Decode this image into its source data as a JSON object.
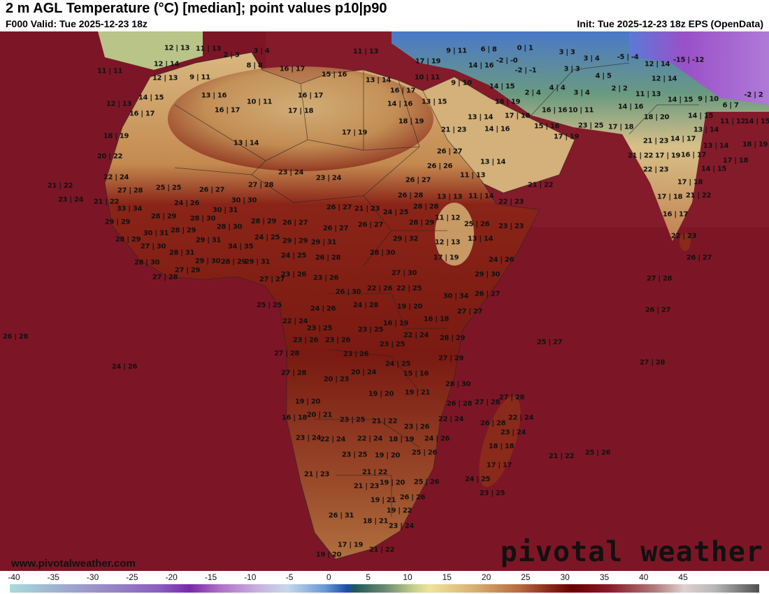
{
  "header": {
    "title": "2 m AGL Temperature (°C) [median]; point values p10|p90",
    "valid": "F000 Valid: Tue 2025-12-23 18z",
    "init": "Init: Tue 2025-12-23 18z EPS (OpenData)"
  },
  "footer": {
    "url": "www.pivotalweather.com",
    "logo": "pivotal weather"
  },
  "colorbar": {
    "ticks": [
      "-40",
      "-35",
      "-30",
      "-25",
      "-20",
      "-15",
      "-10",
      "-5",
      "0",
      "5",
      "10",
      "15",
      "20",
      "25",
      "30",
      "35",
      "40",
      "45"
    ],
    "units": "°C"
  },
  "colors": {
    "ocean": "#7c1626",
    "land_hot": "#8a2418",
    "sahara": "#c89a5e",
    "cold": "#3a6ac8",
    "very_cold": "#9a3ac8"
  },
  "point_values": [
    "12 | 13",
    "11 | 13",
    "2 | 3",
    "3 | 4",
    "11 | 13",
    "17 | 19",
    "9 | 11",
    "6 | 8",
    "0 | 1",
    "3 | 3",
    "3 | 4",
    "-5 | -4",
    "-15 | -12",
    "11 | 11",
    "12 | 14",
    "8 | 8",
    "16 | 17",
    "15 | 16",
    "14 | 16",
    "-2 | -0",
    "3 | 3",
    "4 | 5",
    "12 | 14",
    "12 | 14",
    "12 | 13",
    "9 | 11",
    "13 | 14",
    "10 | 11",
    "9 | 10",
    "-2 | -1",
    "14 | 15",
    "2 | 4",
    "4 | 4",
    "3 | 4",
    "2 | 2",
    "11 | 13",
    "14 | 15",
    "9 | 10",
    "-2 | 2",
    "14 | 15",
    "13 | 16",
    "16 | 17",
    "16 | 17",
    "13 | 15",
    "18 | 19",
    "10 | 11",
    "14 | 16",
    "12 | 13",
    "16 | 17",
    "16 | 17",
    "17 | 18",
    "16 | 16",
    "10 | 11",
    "14 | 16",
    "6 | 7",
    "13 | 14",
    "17 | 18",
    "18 | 20",
    "14 | 15",
    "11 | 12",
    "14 | 15",
    "18 | 19",
    "21 | 23",
    "14 | 16",
    "15 | 16",
    "23 | 25",
    "17 | 18",
    "13 | 14",
    "17 | 19",
    "18 | 19",
    "17 | 19",
    "13 | 14",
    "21 | 23",
    "14 | 17",
    "13 | 14",
    "18 | 19",
    "20 | 22",
    "26 | 27",
    "13 | 14",
    "21 | 22",
    "17 | 19",
    "16 | 17",
    "17 | 18",
    "26 | 26",
    "22 | 23",
    "14 | 15",
    "22 | 24",
    "23 | 24",
    "23 | 24",
    "11 | 13",
    "26 | 27",
    "21 | 22",
    "17 | 18",
    "21 | 22",
    "27 | 28",
    "25 | 25",
    "26 | 27",
    "27 | 28",
    "26 | 28",
    "13 | 13",
    "11 | 14",
    "17 | 18",
    "21 | 22",
    "23 | 24",
    "21 | 22",
    "24 | 26",
    "30 | 30",
    "22 | 23",
    "33 | 34",
    "30 | 31",
    "26 | 27",
    "21 | 23",
    "24 | 25",
    "28 | 28",
    "29 | 29",
    "28 | 29",
    "28 | 30",
    "28 | 29",
    "26 | 27",
    "11 | 12",
    "25 | 26",
    "23 | 23",
    "16 | 17",
    "30 | 31",
    "28 | 29",
    "28 | 30",
    "26 | 27",
    "26 | 27",
    "28 | 29",
    "24 | 25",
    "29 | 29",
    "29 | 31",
    "29 | 32",
    "13 | 14",
    "22 | 23",
    "28 | 29",
    "29 | 31",
    "27 | 30",
    "34 | 35",
    "12 | 13",
    "28 | 31",
    "24 | 25",
    "26 | 28",
    "28 | 30",
    "17 | 19",
    "24 | 26",
    "26 | 27",
    "28 | 30",
    "29 | 30",
    "28 | 29",
    "29 | 31",
    "27 | 29",
    "27 | 28",
    "23 | 26",
    "23 | 26",
    "27 | 30",
    "29 | 30",
    "27 | 28",
    "27 | 27",
    "26 | 30",
    "22 | 26",
    "22 | 25",
    "30 | 34",
    "26 | 27",
    "25 | 25",
    "24 | 26",
    "24 | 28",
    "19 | 20",
    "27 | 27",
    "26 | 27",
    "22 | 24",
    "16 | 18",
    "16 | 19",
    "23 | 25",
    "23 | 25",
    "22 | 24",
    "28 | 29",
    "23 | 26",
    "23 | 26",
    "23 | 25",
    "25 | 27",
    "26 | 28",
    "27 | 28",
    "23 | 26",
    "27 | 29",
    "24 | 25",
    "24 | 26",
    "27 | 28",
    "27 | 28",
    "20 | 24",
    "15 | 16",
    "20 | 23",
    "28 | 30",
    "19 | 20",
    "19 | 21",
    "27 | 28",
    "19 | 20",
    "26 | 28",
    "27 | 28",
    "20 | 21",
    "16 | 18",
    "22 | 24",
    "23 | 25",
    "21 | 22",
    "22 | 24",
    "23 | 26",
    "26 | 28",
    "23 | 24",
    "23 | 24",
    "22 | 24",
    "22 | 24",
    "18 | 19",
    "24 | 26",
    "18 | 18",
    "23 | 25",
    "19 | 20",
    "25 | 26",
    "21 | 22",
    "25 | 26",
    "17 | 17",
    "21 | 22",
    "21 | 23",
    "24 | 25",
    "25 | 26",
    "19 | 20",
    "21 | 23",
    "23 | 25",
    "26 | 26",
    "19 | 21",
    "19 | 22",
    "26 | 31",
    "18 | 21",
    "23 | 24",
    "17 | 19",
    "21 | 22",
    "19 | 20"
  ]
}
